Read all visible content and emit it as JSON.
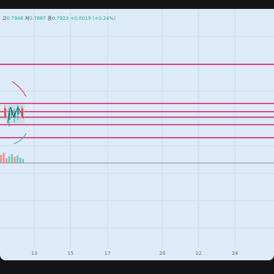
{
  "ohlc": {
    "high_label": "고",
    "high_value": "0.7948",
    "low_label": "저",
    "low_value": "0.7867",
    "close_label": "종",
    "close_value": "0.7923",
    "change": "+0.0019 (+0.24%)"
  },
  "time_axis": {
    "ticks": [
      "13",
      "15",
      "17",
      "20",
      "22",
      "24"
    ]
  },
  "horizontal_lines": {
    "color": "#d81b60",
    "levels_count": 6
  },
  "colors": {
    "chart_background": "#ddeaf7",
    "window_background": "#141416",
    "up_candle": "#26a69a",
    "down_candle": "#ef5350",
    "grid": "#c9dbee"
  }
}
